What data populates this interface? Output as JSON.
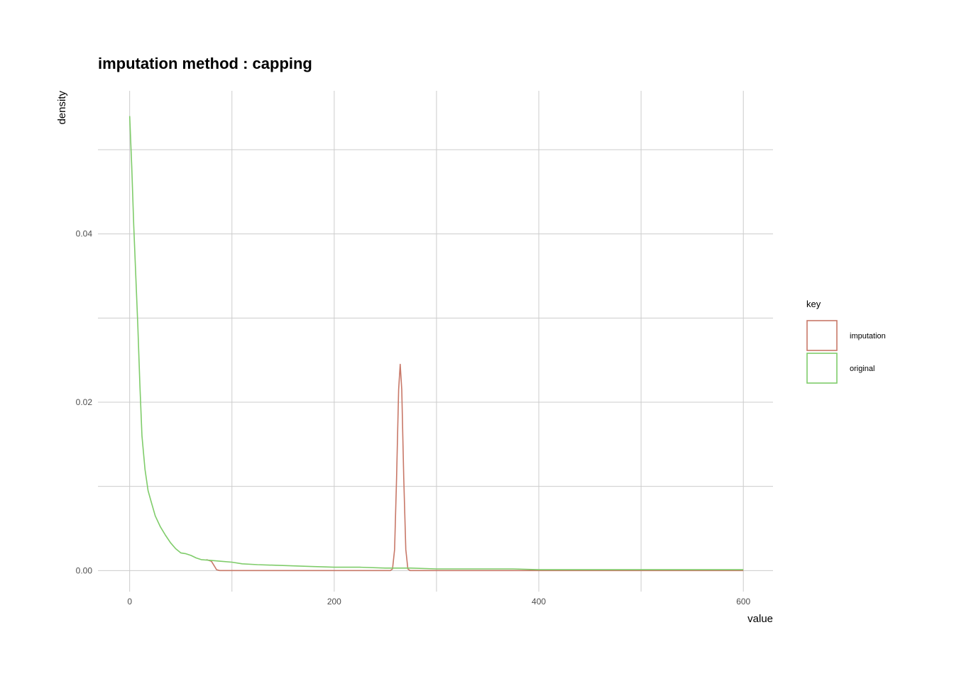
{
  "chart_data": {
    "type": "line",
    "title": "imputation method : capping",
    "xlabel": "value",
    "ylabel": "density",
    "xlim": [
      -31,
      629
    ],
    "ylim": [
      -0.0025,
      0.057
    ],
    "x_ticks": [
      0,
      200,
      400,
      600
    ],
    "x_tick_labels": [
      "0",
      "200",
      "400",
      "600"
    ],
    "x_minor_ticks": [
      100,
      300,
      500
    ],
    "y_ticks": [
      0,
      0.02,
      0.04
    ],
    "y_tick_labels": [
      "0.00",
      "0.02",
      "0.04"
    ],
    "y_minor_ticks": [
      0.01,
      0.03,
      0.05
    ],
    "grid": true,
    "legend": {
      "title": "key",
      "position": "right"
    },
    "series": [
      {
        "name": "imputation",
        "color": "#c87868",
        "points": [
          [
            75,
            0.0013
          ],
          [
            80,
            0.0011
          ],
          [
            83,
            0.0005
          ],
          [
            85,
            0.0001
          ],
          [
            88,
            0.0
          ],
          [
            150,
            0.0
          ],
          [
            200,
            0.0
          ],
          [
            255,
            0.0
          ],
          [
            257,
            0.0002
          ],
          [
            259,
            0.0025
          ],
          [
            261,
            0.011
          ],
          [
            263,
            0.0215
          ],
          [
            264.5,
            0.0245
          ],
          [
            266,
            0.0215
          ],
          [
            268,
            0.011
          ],
          [
            270,
            0.0025
          ],
          [
            272,
            0.0002
          ],
          [
            274,
            0.0
          ],
          [
            300,
            0.0
          ],
          [
            350,
            0.0
          ],
          [
            400,
            0.0
          ],
          [
            450,
            0.0
          ],
          [
            500,
            0.0
          ],
          [
            550,
            0.0
          ],
          [
            600,
            0.0
          ]
        ]
      },
      {
        "name": "original",
        "color": "#7fcc6a",
        "points": [
          [
            0,
            0.054
          ],
          [
            2,
            0.048
          ],
          [
            4,
            0.041
          ],
          [
            6,
            0.035
          ],
          [
            8,
            0.029
          ],
          [
            10,
            0.022
          ],
          [
            12,
            0.016
          ],
          [
            15,
            0.012
          ],
          [
            18,
            0.0095
          ],
          [
            21,
            0.0082
          ],
          [
            25,
            0.0065
          ],
          [
            30,
            0.0052
          ],
          [
            35,
            0.0042
          ],
          [
            40,
            0.0033
          ],
          [
            45,
            0.0026
          ],
          [
            50,
            0.0021
          ],
          [
            55,
            0.002
          ],
          [
            60,
            0.0018
          ],
          [
            65,
            0.0015
          ],
          [
            70,
            0.0013
          ],
          [
            80,
            0.0012
          ],
          [
            90,
            0.0011
          ],
          [
            100,
            0.001
          ],
          [
            110,
            0.0008
          ],
          [
            125,
            0.0007
          ],
          [
            150,
            0.0006
          ],
          [
            175,
            0.0005
          ],
          [
            200,
            0.0004
          ],
          [
            225,
            0.0004
          ],
          [
            250,
            0.0003
          ],
          [
            275,
            0.0003
          ],
          [
            300,
            0.0002
          ],
          [
            325,
            0.0002
          ],
          [
            350,
            0.0002
          ],
          [
            375,
            0.0002
          ],
          [
            400,
            0.0001
          ],
          [
            425,
            0.0001
          ],
          [
            450,
            0.0001
          ],
          [
            475,
            0.0001
          ],
          [
            500,
            0.0001
          ],
          [
            525,
            0.0001
          ],
          [
            550,
            0.0001
          ],
          [
            575,
            0.0001
          ],
          [
            600,
            0.0001
          ]
        ]
      }
    ]
  }
}
